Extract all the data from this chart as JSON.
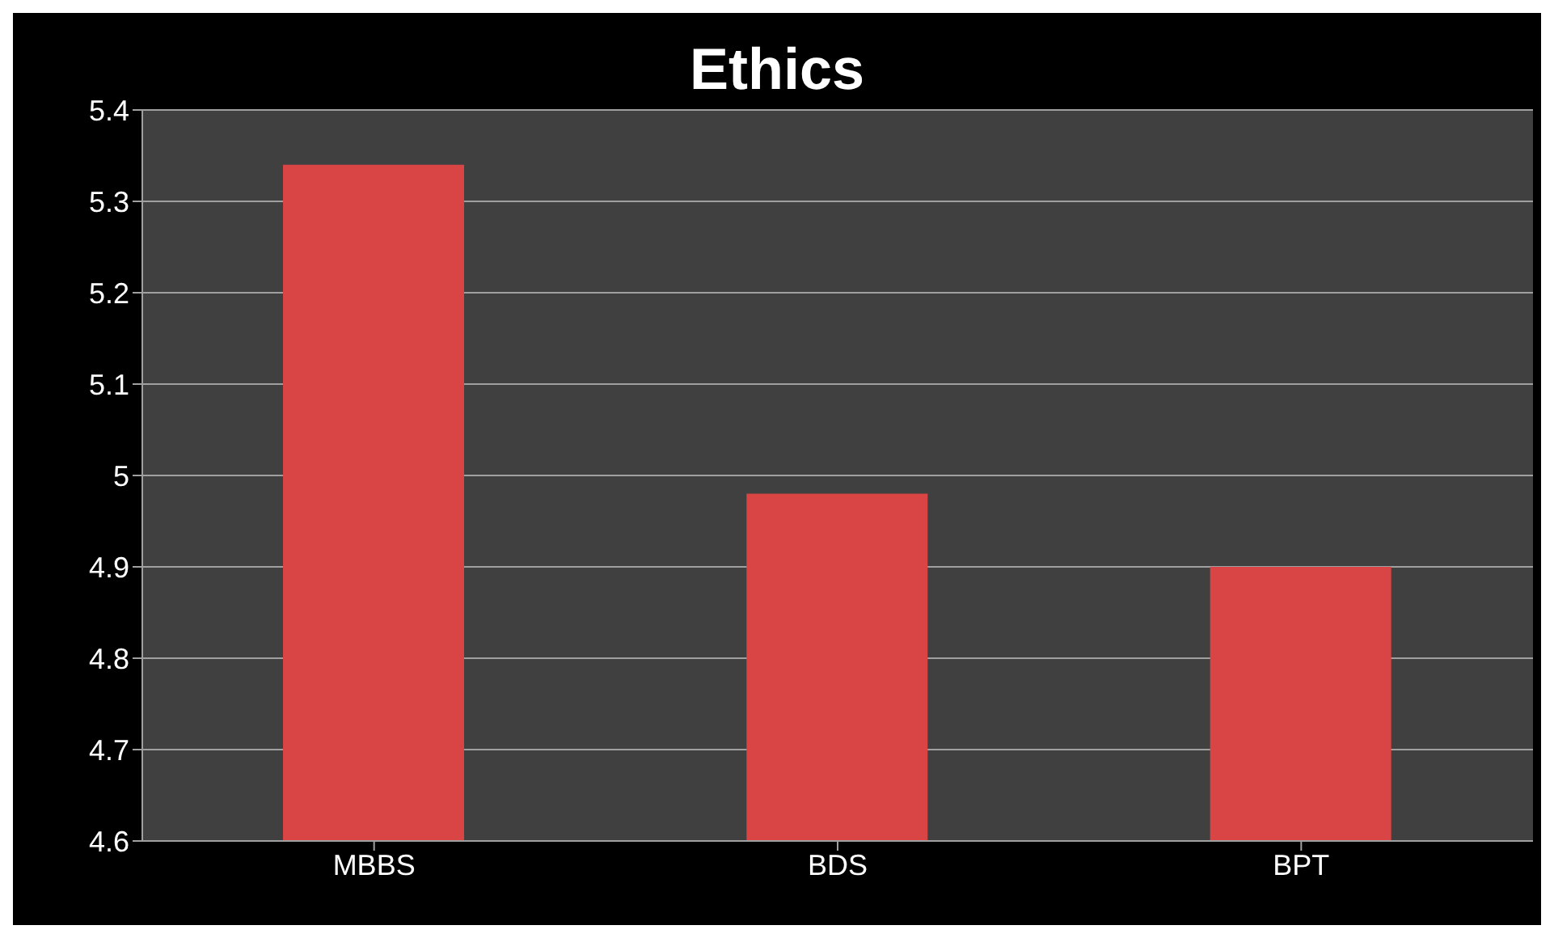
{
  "chart_data": {
    "type": "bar",
    "title": "Ethics",
    "categories": [
      "MBBS",
      "BDS",
      "BPT"
    ],
    "values": [
      5.34,
      4.98,
      4.9
    ],
    "color": "#d94444",
    "ylim": [
      4.6,
      5.4
    ],
    "yticks": [
      4.6,
      4.7,
      4.8,
      4.9,
      5,
      5.1,
      5.2,
      5.3,
      5.4
    ],
    "grid": "y"
  }
}
